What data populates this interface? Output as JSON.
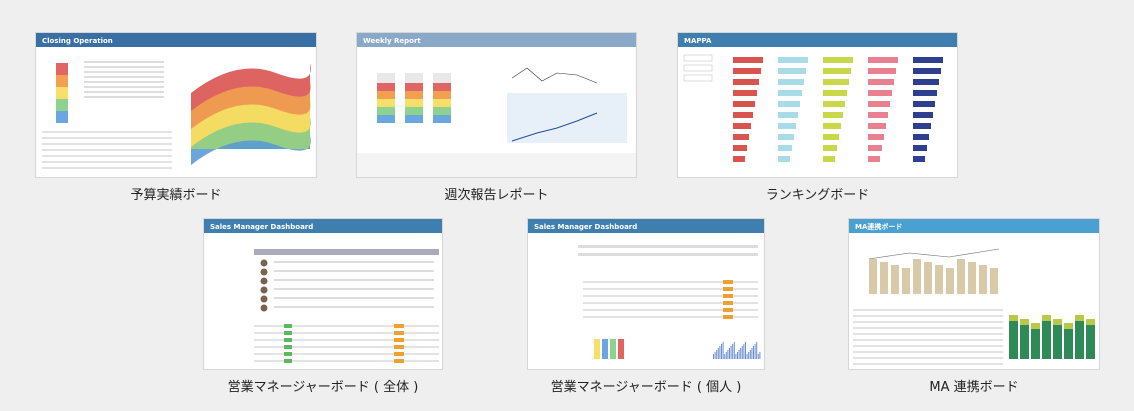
{
  "thumbnails": [
    {
      "title": "Closing Operation",
      "caption": "予算実績ボード"
    },
    {
      "title": "Weekly Report",
      "caption": "週次報告レポート"
    },
    {
      "title": "MAPPA",
      "caption": "ランキングボード"
    },
    {
      "title": "Sales Manager Dashboard",
      "caption": "営業マネージャーボード ( 全体 )"
    },
    {
      "title": "Sales Manager Dashboard",
      "caption": "営業マネージャーボード ( 個人 )"
    },
    {
      "title": "MA連携ボード",
      "caption": "MA 連携ボード"
    }
  ]
}
